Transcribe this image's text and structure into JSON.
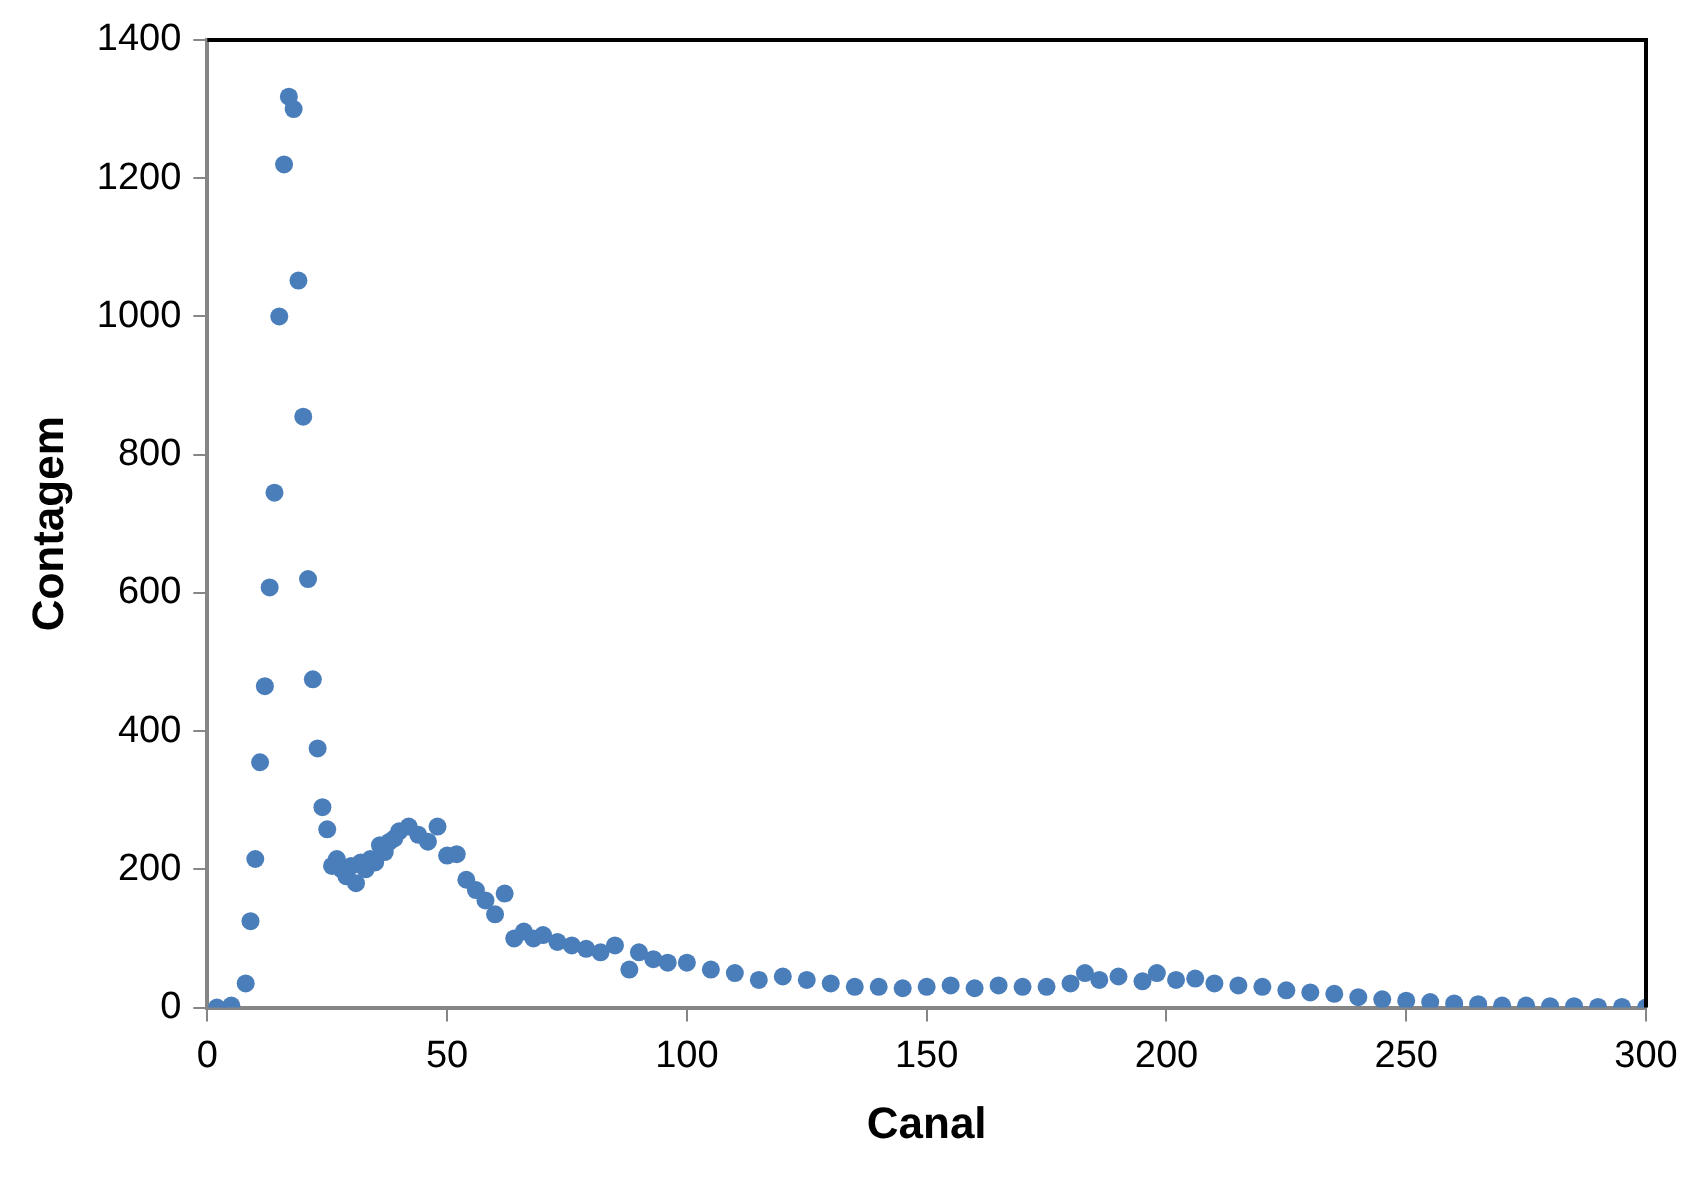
{
  "chart_data": {
    "type": "scatter",
    "xlabel": "Canal",
    "ylabel": "Contagem",
    "marker": "circle",
    "grid": false,
    "legend": false,
    "xlim": [
      0,
      300
    ],
    "xticks": [
      0,
      50,
      100,
      150,
      200,
      250,
      300
    ],
    "ylim": [
      0,
      1400
    ],
    "yticks": [
      0,
      200,
      400,
      600,
      800,
      1000,
      1200,
      1400
    ],
    "x": [
      2,
      5,
      8,
      9,
      10,
      11,
      12,
      13,
      14,
      15,
      16,
      17,
      18,
      19,
      20,
      21,
      22,
      23,
      24,
      25,
      26,
      27,
      28,
      29,
      30,
      31,
      32,
      33,
      34,
      35,
      36,
      37,
      38,
      39,
      40,
      42,
      44,
      46,
      48,
      50,
      52,
      54,
      56,
      58,
      60,
      62,
      64,
      66,
      68,
      70,
      73,
      76,
      79,
      82,
      85,
      88,
      90,
      93,
      96,
      100,
      105,
      110,
      115,
      120,
      125,
      130,
      135,
      140,
      145,
      150,
      155,
      160,
      165,
      170,
      175,
      180,
      183,
      186,
      190,
      195,
      198,
      202,
      206,
      210,
      215,
      220,
      225,
      230,
      235,
      240,
      245,
      250,
      255,
      260,
      265,
      270,
      275,
      280,
      285,
      290,
      295,
      300
    ],
    "series": [
      {
        "color": "#4a7ebb",
        "values": [
          0,
          3,
          35,
          125,
          215,
          355,
          465,
          608,
          745,
          1000,
          1220,
          1318,
          1300,
          1052,
          855,
          620,
          475,
          375,
          290,
          258,
          205,
          215,
          200,
          190,
          205,
          180,
          210,
          200,
          215,
          210,
          235,
          225,
          240,
          245,
          255,
          262,
          250,
          240,
          262,
          220,
          222,
          185,
          170,
          155,
          135,
          165,
          100,
          110,
          100,
          105,
          95,
          90,
          85,
          80,
          90,
          55,
          80,
          70,
          65,
          65,
          55,
          50,
          40,
          45,
          40,
          35,
          30,
          30,
          28,
          30,
          32,
          28,
          32,
          30,
          30,
          35,
          50,
          40,
          45,
          38,
          50,
          40,
          42,
          35,
          32,
          30,
          25,
          22,
          20,
          15,
          12,
          10,
          8,
          6,
          5,
          3,
          3,
          2,
          2,
          1,
          1,
          0
        ]
      }
    ]
  }
}
